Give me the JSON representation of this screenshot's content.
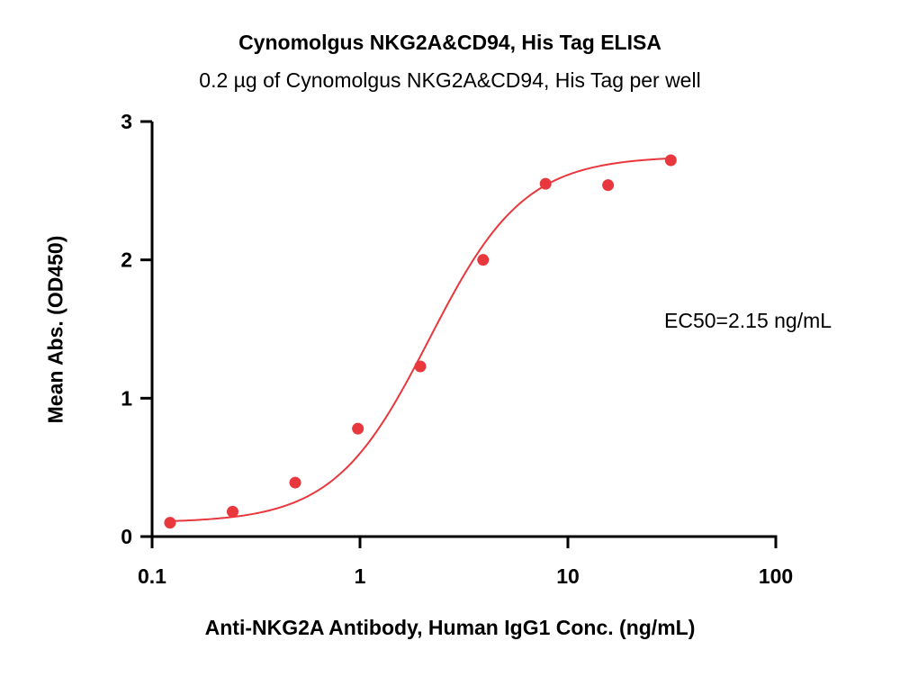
{
  "chart_data": {
    "type": "scatter",
    "title": "Cynomolgus NKG2A&CD94, His Tag ELISA",
    "subtitle": "0.2 µg of Cynomolgus NKG2A&CD94, His Tag per well",
    "xlabel": "Anti-NKG2A Antibody, Human IgG1 Conc. (ng/mL)",
    "ylabel": "Mean Abs. (OD450)",
    "x_scale": "log",
    "xlim": [
      0.1,
      100
    ],
    "ylim": [
      0,
      3
    ],
    "x_ticks": [
      0.1,
      1,
      10,
      100
    ],
    "x_tick_labels": [
      "0.1",
      "1",
      "10",
      "100"
    ],
    "y_ticks": [
      0,
      1,
      2,
      3
    ],
    "y_tick_labels": [
      "0",
      "1",
      "2",
      "3"
    ],
    "grid": false,
    "legend": "none",
    "annotation": "EC50=2.15 ng/mL",
    "point_color": "#e8383d",
    "curve_color": "#e8383d",
    "points": {
      "x": [
        0.122,
        0.244,
        0.488,
        0.977,
        1.95,
        3.91,
        7.81,
        15.6,
        31.25
      ],
      "y": [
        0.1,
        0.18,
        0.39,
        0.78,
        1.23,
        2.0,
        2.55,
        2.54,
        2.72
      ]
    },
    "fit_curve": {
      "model": "4PL",
      "bottom": 0.1,
      "top": 2.75,
      "ec50": 2.15,
      "hill": 1.9,
      "x_range": [
        0.122,
        31.25
      ]
    }
  }
}
